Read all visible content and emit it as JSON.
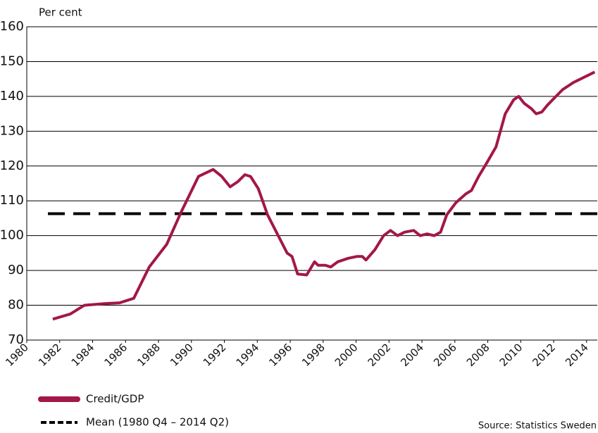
{
  "chart_data": {
    "type": "line",
    "y_label": "Per cent",
    "x": [
      1981.58,
      1982.65,
      1983.5,
      1984.79,
      1985.64,
      1986.5,
      1987.44,
      1988.5,
      1989.4,
      1990.43,
      1991.32,
      1991.84,
      1992.35,
      1992.82,
      1993.25,
      1993.59,
      1994.06,
      1994.62,
      1995.38,
      1995.81,
      1996.11,
      1996.45,
      1997.0,
      1997.48,
      1997.69,
      1998.12,
      1998.46,
      1998.89,
      1999.53,
      2000.04,
      2000.38,
      2000.6,
      2001.15,
      2001.67,
      2002.09,
      2002.52,
      2002.95,
      2003.5,
      2003.89,
      2004.32,
      2004.74,
      2005.13,
      2005.51,
      2006.07,
      2006.67,
      2007.01,
      2007.44,
      2007.95,
      2008.5,
      2009.06,
      2009.57,
      2009.87,
      2010.21,
      2010.64,
      2010.94,
      2011.28,
      2011.62,
      2012.14,
      2012.56,
      2013.21,
      2013.85,
      2014.49
    ],
    "series": [
      {
        "name": "Credit/GDP",
        "color": "#a3174a",
        "values": [
          76,
          77.5,
          80,
          80.5,
          80.7,
          82,
          91,
          97.5,
          107,
          117,
          119,
          117,
          114,
          115.5,
          117.5,
          117,
          113.5,
          106,
          99,
          95,
          94,
          89,
          88.7,
          92.5,
          91.5,
          91.5,
          91,
          92.5,
          93.5,
          94,
          94,
          93,
          96,
          100,
          101.5,
          100,
          101,
          101.5,
          100,
          100.5,
          100,
          101,
          106,
          109.5,
          112,
          113,
          117,
          121,
          125.5,
          135,
          139,
          140,
          138,
          136.5,
          135,
          135.5,
          137.5,
          140,
          142,
          144,
          145.5,
          147
        ]
      }
    ],
    "mean": {
      "name": "Mean (1980 Q4 – 2014 Q2)",
      "value": 106.3,
      "color": "#000000"
    },
    "xlim": [
      1980,
      2014.65
    ],
    "xticks": [
      1980,
      1982,
      1984,
      1986,
      1988,
      1990,
      1992,
      1994,
      1996,
      1998,
      2000,
      2002,
      2004,
      2006,
      2008,
      2010,
      2012,
      2014
    ],
    "ylim": [
      70,
      160
    ],
    "yticks": [
      70,
      80,
      90,
      100,
      110,
      120,
      130,
      140,
      150,
      160
    ],
    "grid": true,
    "source": "Source: Statistics Sweden"
  }
}
